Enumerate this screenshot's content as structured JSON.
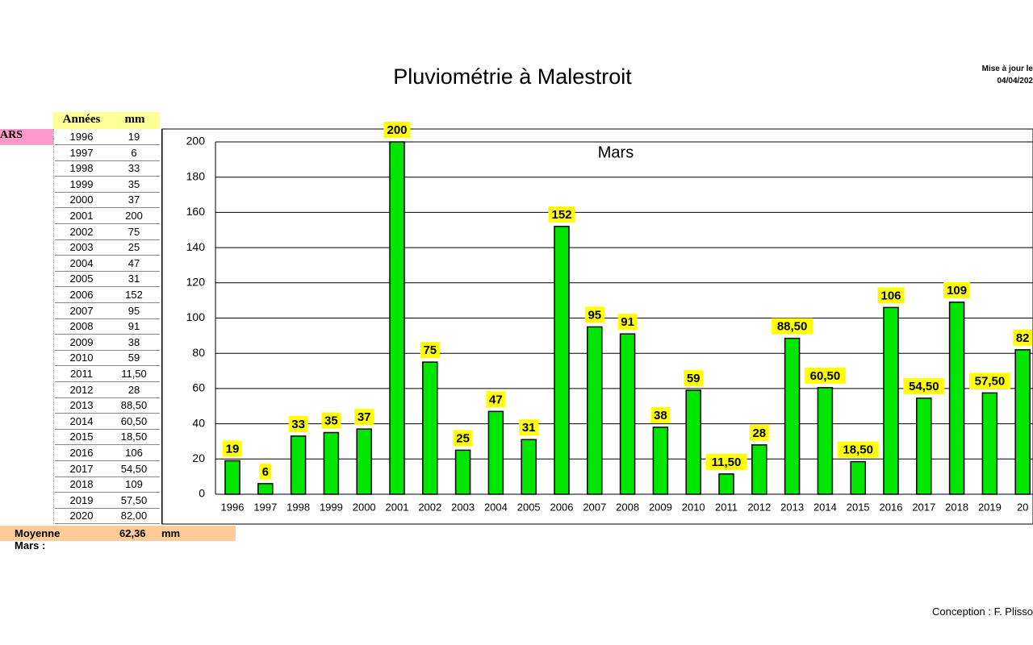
{
  "page": {
    "title": "Pluviométrie à Malestroit",
    "update_label": "Mise à jour le",
    "update_date": "04/04/202",
    "footer": "Conception : F. Plisso"
  },
  "table": {
    "header": [
      "Années",
      "mm"
    ],
    "month_label": "ARS",
    "rows": [
      [
        "1996",
        "19"
      ],
      [
        "1997",
        "6"
      ],
      [
        "1998",
        "33"
      ],
      [
        "1999",
        "35"
      ],
      [
        "2000",
        "37"
      ],
      [
        "2001",
        "200"
      ],
      [
        "2002",
        "75"
      ],
      [
        "2003",
        "25"
      ],
      [
        "2004",
        "47"
      ],
      [
        "2005",
        "31"
      ],
      [
        "2006",
        "152"
      ],
      [
        "2007",
        "95"
      ],
      [
        "2008",
        "91"
      ],
      [
        "2009",
        "38"
      ],
      [
        "2010",
        "59"
      ],
      [
        "2011",
        "11,50"
      ],
      [
        "2012",
        "28"
      ],
      [
        "2013",
        "88,50"
      ],
      [
        "2014",
        "60,50"
      ],
      [
        "2015",
        "18,50"
      ],
      [
        "2016",
        "106"
      ],
      [
        "2017",
        "54,50"
      ],
      [
        "2018",
        "109"
      ],
      [
        "2019",
        "57,50"
      ],
      [
        "2020",
        "82,00"
      ]
    ],
    "average_label": "Moyenne Mars :",
    "average_value": "62,36",
    "average_unit": "mm"
  },
  "chart_data": {
    "type": "bar",
    "title": "Mars",
    "categories": [
      "1996",
      "1997",
      "1998",
      "1999",
      "2000",
      "2001",
      "2002",
      "2003",
      "2004",
      "2005",
      "2006",
      "2007",
      "2008",
      "2009",
      "2010",
      "2011",
      "2012",
      "2013",
      "2014",
      "2015",
      "2016",
      "2017",
      "2018",
      "2019",
      "20"
    ],
    "values": [
      19,
      6,
      33,
      35,
      37,
      200,
      75,
      25,
      47,
      31,
      152,
      95,
      91,
      38,
      59,
      11.5,
      28,
      88.5,
      60.5,
      18.5,
      106,
      54.5,
      109,
      57.5,
      82
    ],
    "value_labels": [
      "19",
      "6",
      "33",
      "35",
      "37",
      "200",
      "75",
      "25",
      "47",
      "31",
      "152",
      "95",
      "91",
      "38",
      "59",
      "11,50",
      "28",
      "88,50",
      "60,50",
      "18,50",
      "106",
      "54,50",
      "109",
      "57,50",
      "82"
    ],
    "color": "#00e600",
    "label_color": "#ffff00",
    "ylim": [
      0,
      200
    ],
    "yticks": [
      0,
      20,
      40,
      60,
      80,
      100,
      120,
      140,
      160,
      180,
      200
    ],
    "grid": true
  }
}
